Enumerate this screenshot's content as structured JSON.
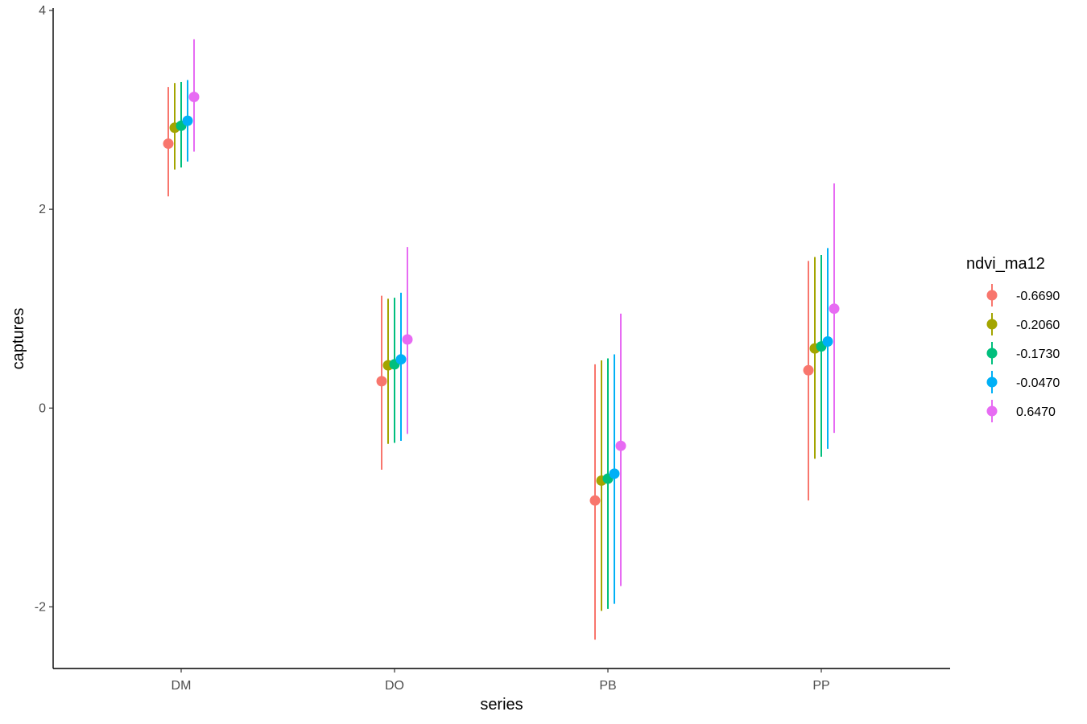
{
  "chart_data": {
    "type": "pointrange",
    "xlabel": "series",
    "ylabel": "captures",
    "categories": [
      "DM",
      "DO",
      "PB",
      "PP"
    ],
    "y_ticks": [
      -2,
      0,
      2,
      4
    ],
    "y_tick_labels": [
      "-2",
      "0",
      "2",
      "4"
    ],
    "ylim": [
      -2.62,
      4.0
    ],
    "grid": false,
    "legend": {
      "title": "ndvi_ma12",
      "position": "right"
    },
    "series": [
      {
        "name": "-0.6690",
        "color": "#F8766D",
        "values": [
          2.66,
          0.27,
          -0.93,
          0.38
        ],
        "lower": [
          2.13,
          -0.62,
          -2.33,
          -0.93
        ],
        "upper": [
          3.23,
          1.13,
          0.44,
          1.48
        ]
      },
      {
        "name": "-0.2060",
        "color": "#A3A500",
        "values": [
          2.82,
          0.43,
          -0.73,
          0.6
        ],
        "lower": [
          2.4,
          -0.36,
          -2.04,
          -0.51
        ],
        "upper": [
          3.27,
          1.1,
          0.48,
          1.52
        ]
      },
      {
        "name": "-0.1730",
        "color": "#00BF7D",
        "values": [
          2.84,
          0.44,
          -0.71,
          0.62
        ],
        "lower": [
          2.42,
          -0.35,
          -2.02,
          -0.49
        ],
        "upper": [
          3.28,
          1.11,
          0.5,
          1.54
        ]
      },
      {
        "name": "-0.0470",
        "color": "#00B0F6",
        "values": [
          2.89,
          0.49,
          -0.66,
          0.67
        ],
        "lower": [
          2.48,
          -0.33,
          -1.97,
          -0.41
        ],
        "upper": [
          3.3,
          1.16,
          0.54,
          1.61
        ]
      },
      {
        "name": "0.6470",
        "color": "#E76BF3",
        "values": [
          3.13,
          0.69,
          -0.38,
          1.0
        ],
        "lower": [
          2.58,
          -0.26,
          -1.79,
          -0.25
        ],
        "upper": [
          3.71,
          1.62,
          0.95,
          2.26
        ]
      }
    ]
  }
}
